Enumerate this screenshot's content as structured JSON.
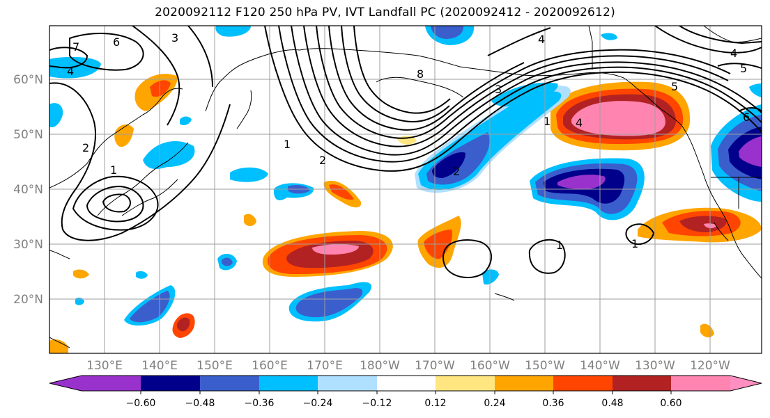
{
  "title": "2020092112 F120 250 hPa PV, IVT Landfall PC (2020092412 - 2020092612)",
  "map": {
    "lat_labels": [
      "20°N",
      "30°N",
      "40°N",
      "50°N",
      "60°N"
    ],
    "lon_labels": [
      "130°E",
      "140°E",
      "150°E",
      "160°E",
      "170°E",
      "180°W",
      "170°W",
      "160°W",
      "150°W",
      "140°W",
      "130°W",
      "120°W"
    ],
    "contour_labels": [
      "7",
      "6",
      "4",
      "3",
      "2",
      "1",
      "2",
      "1",
      "8",
      "4",
      "3",
      "2",
      "1",
      "4",
      "5",
      "1",
      "1",
      "4",
      "5",
      "6"
    ],
    "gridlines": true
  },
  "colorbar": {
    "ticks": [
      "−0.60",
      "−0.48",
      "−0.36",
      "−0.24",
      "−0.12",
      "0.12",
      "0.24",
      "0.36",
      "0.48",
      "0.60"
    ],
    "colors": [
      "#9932cc",
      "#00008b",
      "#3a5fcd",
      "#00bfff",
      "#b0e0ff",
      "#ffffff",
      "#ffe680",
      "#ffa500",
      "#ff4500",
      "#b22222",
      "#ff85b0",
      "#ff8fc0"
    ]
  },
  "palette": {
    "purple": "#9932cc",
    "navy": "#00008b",
    "blue": "#3a5fcd",
    "cyan": "#00bfff",
    "lightblue": "#b0e0ff",
    "yellow": "#ffe680",
    "orange": "#ffa500",
    "redorange": "#ff4500",
    "darkred": "#b22222",
    "pink": "#ff85b0"
  }
}
